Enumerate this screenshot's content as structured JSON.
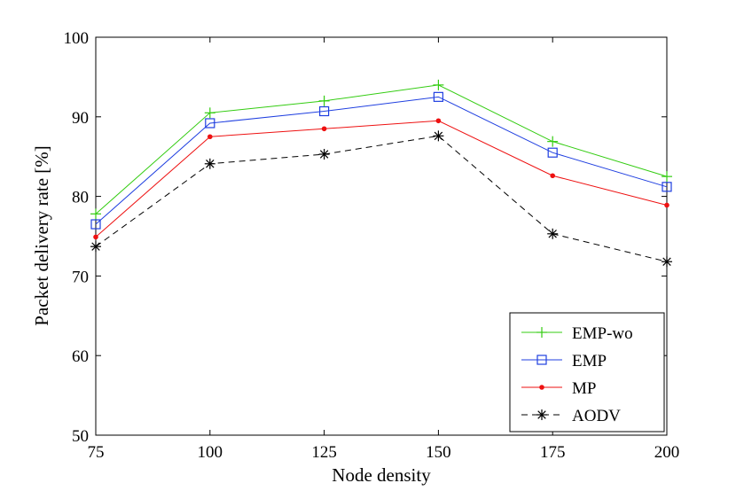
{
  "chart_data": {
    "type": "line",
    "title": "",
    "xlabel": "Node density",
    "ylabel": "Packet delivery rate [%]",
    "x": [
      75,
      100,
      125,
      150,
      175,
      200
    ],
    "xlim": [
      75,
      200
    ],
    "ylim": [
      50,
      100
    ],
    "xticks": [
      "75",
      "100",
      "125",
      "150",
      "175",
      "200"
    ],
    "yticks": [
      "50",
      "60",
      "70",
      "80",
      "90",
      "100"
    ],
    "grid": false,
    "legend_position": "bottom-right",
    "series": [
      {
        "name": "EMP-wo",
        "color": "#33cc11",
        "marker": "plus",
        "dashed": false,
        "values": [
          77.8,
          90.5,
          92.0,
          94.0,
          86.9,
          82.5
        ]
      },
      {
        "name": "EMP",
        "color": "#1f3fe0",
        "marker": "square",
        "dashed": false,
        "values": [
          76.5,
          89.2,
          90.7,
          92.5,
          85.5,
          81.2
        ]
      },
      {
        "name": "MP",
        "color": "#ee1111",
        "marker": "dot",
        "dashed": false,
        "values": [
          74.9,
          87.5,
          88.5,
          89.5,
          82.6,
          78.9
        ]
      },
      {
        "name": "AODV",
        "color": "#000000",
        "marker": "asterisk",
        "dashed": true,
        "values": [
          73.7,
          84.1,
          85.3,
          87.6,
          75.3,
          71.8
        ]
      }
    ]
  }
}
